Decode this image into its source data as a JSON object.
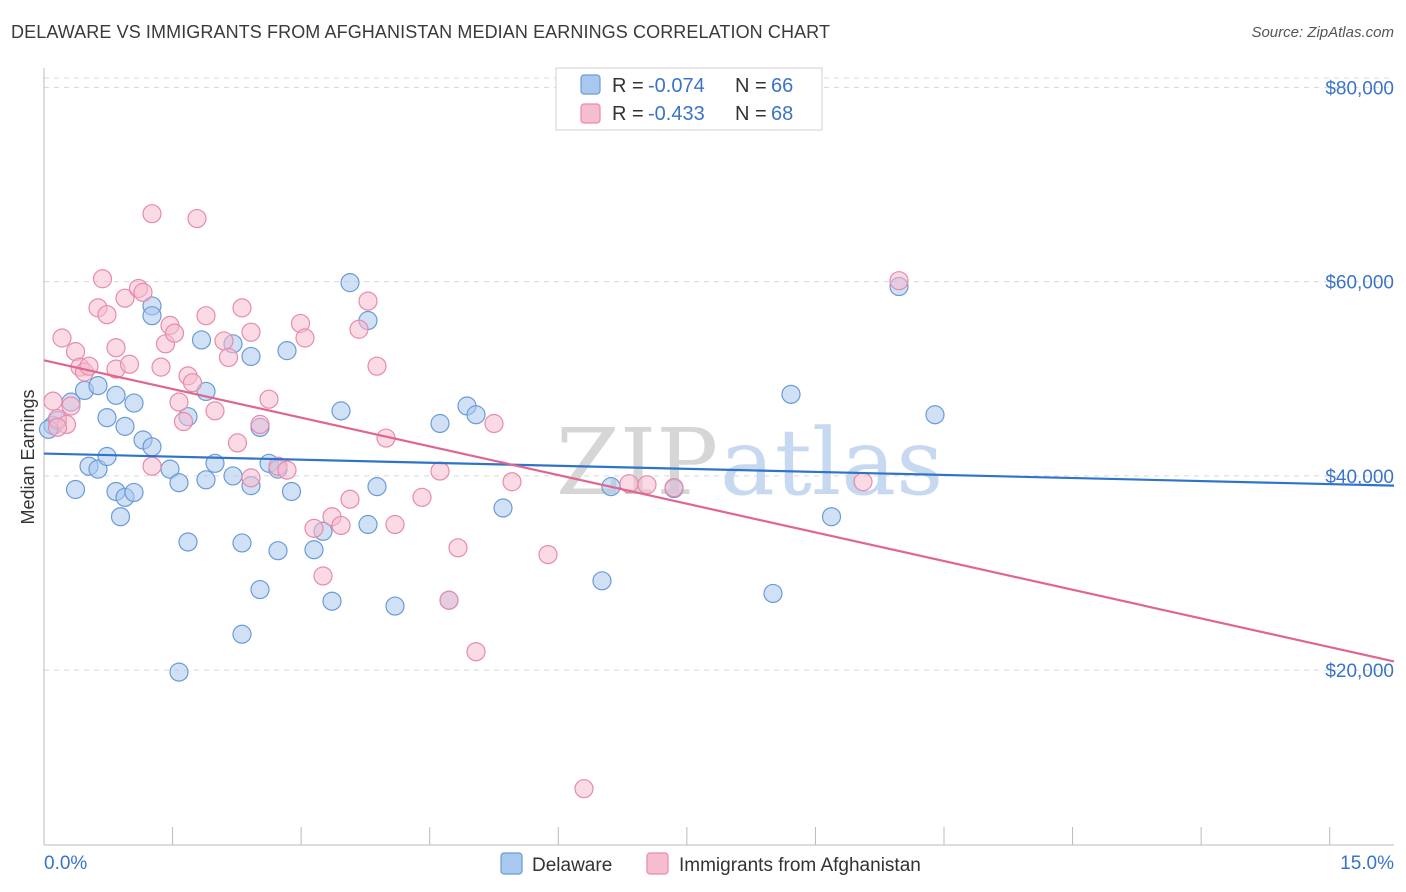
{
  "title": "DELAWARE VS IMMIGRANTS FROM AFGHANISTAN MEDIAN EARNINGS CORRELATION CHART",
  "source": "Source: ZipAtlas.com",
  "watermark": {
    "zip": "ZIP",
    "atlas": "atlas"
  },
  "colors": {
    "delaware_fill": "#a9c8ef",
    "delaware_stroke": "#6a9bd8",
    "delaware_line": "#2f74c8",
    "afghan_fill": "#f6bcd0",
    "afghan_stroke": "#e98aac",
    "afghan_line": "#e0668f",
    "axis_text": "#3a74c9",
    "grid": "#d8d8d8"
  },
  "legend": {
    "rows": [
      {
        "r_label": "R =",
        "r_value": "-0.074",
        "n_label": "N =",
        "n_value": "66"
      },
      {
        "r_label": "R =",
        "r_value": "-0.433",
        "n_label": "N =",
        "n_value": "68"
      }
    ]
  },
  "chart_data": {
    "type": "scatter",
    "title": "DELAWARE VS IMMIGRANTS FROM AFGHANISTAN MEDIAN EARNINGS CORRELATION CHART",
    "xlabel": "",
    "ylabel": "Median Earnings",
    "xlim": [
      0,
      15
    ],
    "ylim": [
      2000,
      82000
    ],
    "x_tick_labels": [
      "0.0%",
      "15.0%"
    ],
    "y_ticks": [
      20000,
      40000,
      60000,
      80000
    ],
    "y_tick_labels": [
      "$20,000",
      "$40,000",
      "$60,000",
      "$80,000"
    ],
    "grid": "horizontal dashed",
    "legend_position": "top-center",
    "series": [
      {
        "name": "Delaware",
        "trend": {
          "x": [
            0,
            15
          ],
          "y": [
            42300,
            39000
          ]
        },
        "points": [
          [
            0.1,
            45200
          ],
          [
            0.15,
            45700
          ],
          [
            0.3,
            47600
          ],
          [
            0.45,
            48800
          ],
          [
            0.7,
            46000
          ],
          [
            0.8,
            48300
          ],
          [
            0.9,
            45100
          ],
          [
            0.6,
            49300
          ],
          [
            1.0,
            47500
          ],
          [
            0.5,
            41000
          ],
          [
            0.6,
            40700
          ],
          [
            0.7,
            42000
          ],
          [
            1.1,
            43700
          ],
          [
            1.2,
            43000
          ],
          [
            0.35,
            38600
          ],
          [
            0.8,
            38400
          ],
          [
            0.9,
            37800
          ],
          [
            1.0,
            38300
          ],
          [
            0.85,
            35800
          ],
          [
            1.4,
            40700
          ],
          [
            1.5,
            39300
          ],
          [
            1.8,
            39600
          ],
          [
            1.9,
            41300
          ],
          [
            2.1,
            40000
          ],
          [
            2.3,
            39000
          ],
          [
            2.4,
            45000
          ],
          [
            2.5,
            41300
          ],
          [
            2.6,
            40700
          ],
          [
            2.75,
            38400
          ],
          [
            1.6,
            46100
          ],
          [
            1.8,
            48700
          ],
          [
            1.75,
            54000
          ],
          [
            2.1,
            53600
          ],
          [
            2.3,
            52300
          ],
          [
            2.7,
            52900
          ],
          [
            1.2,
            57500
          ],
          [
            1.2,
            56500
          ],
          [
            1.6,
            33200
          ],
          [
            2.2,
            33100
          ],
          [
            2.6,
            32300
          ],
          [
            2.4,
            28300
          ],
          [
            2.2,
            23700
          ],
          [
            1.5,
            19800
          ],
          [
            3.0,
            32400
          ],
          [
            3.1,
            34300
          ],
          [
            3.2,
            27100
          ],
          [
            3.3,
            46700
          ],
          [
            3.4,
            59900
          ],
          [
            3.6,
            56000
          ],
          [
            3.6,
            35000
          ],
          [
            3.7,
            38900
          ],
          [
            3.9,
            26600
          ],
          [
            4.4,
            45400
          ],
          [
            4.5,
            27200
          ],
          [
            4.7,
            47200
          ],
          [
            4.8,
            46300
          ],
          [
            5.1,
            36700
          ],
          [
            6.2,
            29200
          ],
          [
            6.3,
            38900
          ],
          [
            7.0,
            38700
          ],
          [
            8.1,
            27900
          ],
          [
            8.3,
            48400
          ],
          [
            8.75,
            35800
          ],
          [
            9.5,
            59500
          ],
          [
            9.9,
            46300
          ],
          [
            0.05,
            44800
          ]
        ]
      },
      {
        "name": "Immigrants from Afghanistan",
        "trend": {
          "x": [
            0,
            15
          ],
          "y": [
            51900,
            20900
          ]
        },
        "points": [
          [
            0.1,
            47700
          ],
          [
            0.15,
            45900
          ],
          [
            0.25,
            45300
          ],
          [
            0.3,
            47200
          ],
          [
            0.2,
            54200
          ],
          [
            0.35,
            52800
          ],
          [
            0.4,
            51200
          ],
          [
            0.45,
            50700
          ],
          [
            0.5,
            51300
          ],
          [
            0.6,
            57300
          ],
          [
            0.65,
            60300
          ],
          [
            0.7,
            56600
          ],
          [
            0.8,
            53200
          ],
          [
            0.8,
            51000
          ],
          [
            0.9,
            58300
          ],
          [
            0.95,
            51500
          ],
          [
            1.05,
            59300
          ],
          [
            1.1,
            58900
          ],
          [
            1.2,
            67000
          ],
          [
            1.3,
            51200
          ],
          [
            1.35,
            53600
          ],
          [
            1.4,
            55500
          ],
          [
            1.45,
            54700
          ],
          [
            1.5,
            47600
          ],
          [
            1.6,
            50300
          ],
          [
            1.65,
            49600
          ],
          [
            1.55,
            45600
          ],
          [
            1.7,
            66500
          ],
          [
            1.8,
            56500
          ],
          [
            1.9,
            46700
          ],
          [
            2.0,
            53900
          ],
          [
            2.05,
            52200
          ],
          [
            2.15,
            43400
          ],
          [
            2.2,
            57300
          ],
          [
            2.3,
            54800
          ],
          [
            2.4,
            45300
          ],
          [
            2.5,
            47900
          ],
          [
            2.6,
            41000
          ],
          [
            2.7,
            40600
          ],
          [
            2.85,
            55700
          ],
          [
            2.9,
            54200
          ],
          [
            3.0,
            34600
          ],
          [
            3.1,
            29700
          ],
          [
            3.2,
            35800
          ],
          [
            3.3,
            34900
          ],
          [
            3.4,
            37600
          ],
          [
            3.5,
            55100
          ],
          [
            3.6,
            58000
          ],
          [
            3.7,
            51300
          ],
          [
            3.8,
            43900
          ],
          [
            3.9,
            35000
          ],
          [
            4.2,
            37800
          ],
          [
            4.4,
            40500
          ],
          [
            4.5,
            27200
          ],
          [
            4.6,
            32600
          ],
          [
            4.8,
            21900
          ],
          [
            5.0,
            45400
          ],
          [
            5.2,
            39400
          ],
          [
            5.6,
            31900
          ],
          [
            6.0,
            7800
          ],
          [
            6.5,
            39200
          ],
          [
            6.7,
            39100
          ],
          [
            7.0,
            38800
          ],
          [
            9.1,
            39400
          ],
          [
            9.5,
            60100
          ],
          [
            0.15,
            45000
          ],
          [
            1.2,
            41000
          ],
          [
            2.3,
            39800
          ]
        ]
      }
    ]
  },
  "bottom_legend": [
    "Delaware",
    "Immigrants from Afghanistan"
  ]
}
